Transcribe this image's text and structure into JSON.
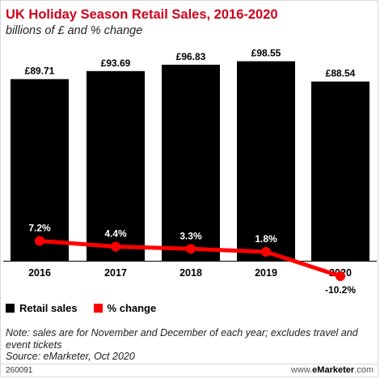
{
  "header": {
    "title": "UK Holiday Season Retail Sales, 2016-2020",
    "subtitle": "billions of £ and % change"
  },
  "legend": {
    "items": [
      {
        "label": "Retail sales",
        "color": "#000000"
      },
      {
        "label": "% change",
        "color": "#ff0000"
      }
    ]
  },
  "chart_data": {
    "type": "bar",
    "categories": [
      "2016",
      "2017",
      "2018",
      "2019",
      "2020"
    ],
    "series": [
      {
        "name": "Retail sales",
        "values": [
          89.71,
          93.69,
          96.83,
          98.55,
          88.54
        ],
        "labels": [
          "£89.71",
          "£93.69",
          "£96.83",
          "£98.55",
          "£88.54"
        ],
        "color": "#000000"
      },
      {
        "name": "% change",
        "type": "line",
        "values": [
          7.2,
          4.4,
          3.3,
          1.8,
          -10.2
        ],
        "labels": [
          "7.2%",
          "4.4%",
          "3.3%",
          "1.8%",
          "-10.2%"
        ],
        "color": "#ff0000"
      }
    ],
    "grid": false,
    "legend_position": "bottom-left"
  },
  "notes": {
    "note": "Note: sales are for November and December of each year; excludes travel and event tickets",
    "source": "Source: eMarketer, Oct 2020"
  },
  "footer": {
    "id": "260091",
    "brand_prefix": "www.",
    "brand_name": "eMarketer",
    "brand_suffix": ".com"
  }
}
